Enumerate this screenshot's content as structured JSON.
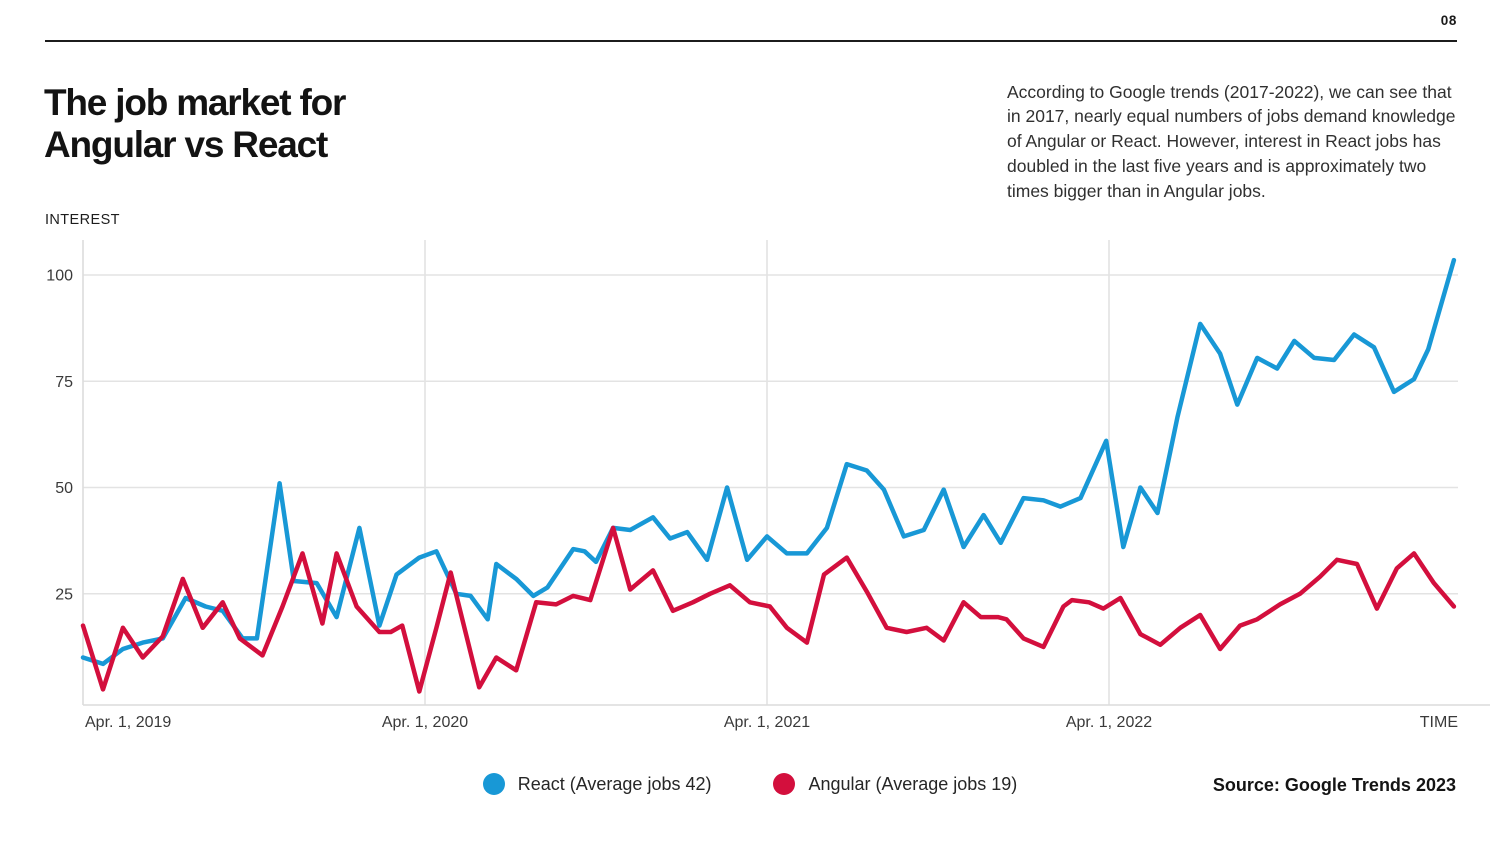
{
  "page": {
    "number": "08"
  },
  "header": {
    "title": "The job market for\nAngular vs React",
    "intro_text": "According to Google trends (2017-2022), we can see that\nin 2017, nearly equal numbers of jobs demand knowledge\nof Angular or React. However, interest in React jobs has\ndoubled in the last five years and is approximately two\ntimes bigger than in Angular jobs."
  },
  "footer": {
    "source": "Source: Google Trends 2023"
  },
  "chart_data": {
    "type": "line",
    "title": "The job market for Angular vs React",
    "grid": true,
    "x_axis": {
      "label": "TIME",
      "unit": "months since Apr 1, 2019",
      "ticks": [
        {
          "label": "Apr. 1, 2019",
          "month": 0,
          "align": "start"
        },
        {
          "label": "Apr. 1, 2020",
          "month": 12,
          "align": "middle"
        },
        {
          "label": "Apr. 1, 2021",
          "month": 24,
          "align": "middle"
        },
        {
          "label": "Apr. 1, 2022",
          "month": 36,
          "align": "middle"
        }
      ],
      "range_months": [
        0,
        48.1
      ]
    },
    "y_axis": {
      "label": "INTEREST",
      "ticks": [
        25,
        50,
        75,
        100
      ],
      "range": [
        0,
        108
      ]
    },
    "series": [
      {
        "name": "React",
        "legend": "React (Average jobs 42)",
        "average_jobs": 42,
        "color": "#1898d6",
        "points": [
          [
            0,
            10
          ],
          [
            0.7,
            8.5
          ],
          [
            1.4,
            12
          ],
          [
            2.1,
            13.5
          ],
          [
            2.8,
            14.5
          ],
          [
            3.6,
            24
          ],
          [
            4.3,
            22
          ],
          [
            4.9,
            21
          ],
          [
            5.6,
            14.5
          ],
          [
            6.1,
            14.5
          ],
          [
            6.9,
            51
          ],
          [
            7.4,
            28
          ],
          [
            8.2,
            27.5
          ],
          [
            8.9,
            19.5
          ],
          [
            9.7,
            40.5
          ],
          [
            10.4,
            17.5
          ],
          [
            11,
            29.5
          ],
          [
            11.8,
            33.5
          ],
          [
            12.4,
            35
          ],
          [
            13.1,
            25
          ],
          [
            13.6,
            24.5
          ],
          [
            14.2,
            19
          ],
          [
            14.5,
            32
          ],
          [
            15.2,
            28.5
          ],
          [
            15.8,
            24.5
          ],
          [
            16.3,
            26.5
          ],
          [
            17.2,
            35.5
          ],
          [
            17.6,
            35
          ],
          [
            18,
            32.5
          ],
          [
            18.6,
            40.5
          ],
          [
            19.2,
            40
          ],
          [
            20,
            43
          ],
          [
            20.6,
            38
          ],
          [
            21.2,
            39.5
          ],
          [
            21.9,
            33
          ],
          [
            22.6,
            50
          ],
          [
            23.3,
            33
          ],
          [
            24,
            38.5
          ],
          [
            24.7,
            34.5
          ],
          [
            25.4,
            34.5
          ],
          [
            26.1,
            40.5
          ],
          [
            26.8,
            55.5
          ],
          [
            27.5,
            54
          ],
          [
            28.1,
            49.5
          ],
          [
            28.8,
            38.5
          ],
          [
            29.5,
            40
          ],
          [
            30.2,
            49.5
          ],
          [
            30.9,
            36
          ],
          [
            31.6,
            43.5
          ],
          [
            32.2,
            37
          ],
          [
            33,
            47.5
          ],
          [
            33.7,
            47
          ],
          [
            34.3,
            45.5
          ],
          [
            35,
            47.5
          ],
          [
            35.9,
            61
          ],
          [
            36.5,
            36
          ],
          [
            37.1,
            50
          ],
          [
            37.7,
            44
          ],
          [
            38.4,
            66.5
          ],
          [
            39.2,
            88.5
          ],
          [
            39.9,
            81.5
          ],
          [
            40.5,
            69.5
          ],
          [
            41.2,
            80.5
          ],
          [
            41.9,
            78
          ],
          [
            42.5,
            84.5
          ],
          [
            43.2,
            80.5
          ],
          [
            43.9,
            80
          ],
          [
            44.6,
            86
          ],
          [
            45.3,
            83
          ],
          [
            46,
            72.5
          ],
          [
            46.7,
            75.5
          ],
          [
            47.2,
            82.5
          ],
          [
            48.1,
            103.5
          ]
        ]
      },
      {
        "name": "Angular",
        "legend": "Angular (Average jobs 19)",
        "average_jobs": 19,
        "color": "#d30f3d",
        "points": [
          [
            0,
            17.5
          ],
          [
            0.7,
            2.5
          ],
          [
            1.4,
            17
          ],
          [
            2.1,
            10
          ],
          [
            2.8,
            15
          ],
          [
            3.5,
            28.5
          ],
          [
            4.2,
            17
          ],
          [
            4.9,
            23
          ],
          [
            5.5,
            14.5
          ],
          [
            6.3,
            10.5
          ],
          [
            7,
            22
          ],
          [
            7.7,
            34.5
          ],
          [
            8.4,
            18
          ],
          [
            8.9,
            34.5
          ],
          [
            9.6,
            22
          ],
          [
            10.4,
            16
          ],
          [
            10.8,
            16
          ],
          [
            11.2,
            17.5
          ],
          [
            11.8,
            2
          ],
          [
            12.4,
            17
          ],
          [
            12.9,
            30
          ],
          [
            13.9,
            3
          ],
          [
            14.5,
            10
          ],
          [
            15.2,
            7
          ],
          [
            15.9,
            23
          ],
          [
            16.6,
            22.5
          ],
          [
            17.2,
            24.5
          ],
          [
            17.8,
            23.5
          ],
          [
            18.6,
            40.5
          ],
          [
            19.2,
            26
          ],
          [
            20,
            30.5
          ],
          [
            20.7,
            21
          ],
          [
            21.4,
            23
          ],
          [
            22,
            25
          ],
          [
            22.7,
            27
          ],
          [
            23.4,
            23
          ],
          [
            24.1,
            22
          ],
          [
            24.7,
            17
          ],
          [
            25.4,
            13.5
          ],
          [
            26,
            29.5
          ],
          [
            26.8,
            33.5
          ],
          [
            27.5,
            25.5
          ],
          [
            28.2,
            17
          ],
          [
            28.9,
            16
          ],
          [
            29.6,
            17
          ],
          [
            30.2,
            14
          ],
          [
            30.9,
            23
          ],
          [
            31.5,
            19.5
          ],
          [
            32.1,
            19.5
          ],
          [
            32.4,
            19
          ],
          [
            33,
            14.5
          ],
          [
            33.7,
            12.5
          ],
          [
            34.4,
            22
          ],
          [
            34.7,
            23.5
          ],
          [
            35.3,
            23
          ],
          [
            35.8,
            21.5
          ],
          [
            36.4,
            24
          ],
          [
            37.1,
            15.5
          ],
          [
            37.8,
            13
          ],
          [
            38.5,
            17
          ],
          [
            39.2,
            20
          ],
          [
            39.9,
            12
          ],
          [
            40.6,
            17.5
          ],
          [
            41.2,
            19
          ],
          [
            42,
            22.5
          ],
          [
            42.7,
            25
          ],
          [
            43.4,
            29
          ],
          [
            44,
            33
          ],
          [
            44.7,
            32
          ],
          [
            45.4,
            21.5
          ],
          [
            46.1,
            31
          ],
          [
            46.7,
            34.5
          ],
          [
            47.4,
            27.5
          ],
          [
            48.1,
            22
          ]
        ]
      }
    ]
  }
}
